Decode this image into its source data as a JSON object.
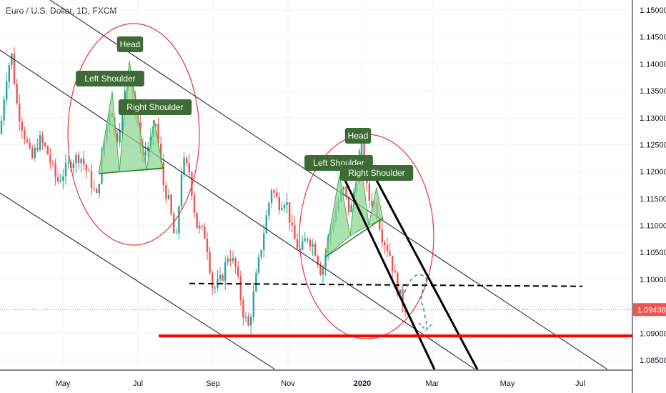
{
  "header": {
    "symbol_title": "Euro / U.S. Dollar, 1D, FXCM"
  },
  "colors": {
    "up": "#26a69a",
    "down": "#ef5350",
    "pattern_fill": "#8fd694",
    "label_bg": "#3d6b35",
    "support": "#ff0000",
    "last_price": "#ef5350",
    "ellipse": "#e53935",
    "channel": "#131722"
  },
  "chart_data": {
    "type": "candlestick",
    "y_axis": {
      "range": [
        1.0825,
        1.1525
      ],
      "ticks": [
        "1.15000",
        "1.14500",
        "1.14000",
        "1.13500",
        "1.13000",
        "1.12500",
        "1.12000",
        "1.11500",
        "1.11000",
        "1.10500",
        "1.10000",
        "1.09500",
        "1.09000",
        "1.08500"
      ],
      "last_price_label": "1.09438"
    },
    "x_axis": {
      "ticks": [
        "May",
        "Jul",
        "Sep",
        "Nov",
        "2020",
        "Mar",
        "May",
        "Jul"
      ]
    },
    "last_price": 1.09438,
    "support_level": 1.0895,
    "neckline_level": 1.0995,
    "annotations": [
      {
        "text": "Head",
        "pattern": 1
      },
      {
        "text": "Left Shoulder",
        "pattern": 1
      },
      {
        "text": "Right Shoulder",
        "pattern": 1
      },
      {
        "text": "Head",
        "pattern": 2
      },
      {
        "text": "Left Shoulder",
        "pattern": 2
      },
      {
        "text": "Right Shoulder",
        "pattern": 2
      }
    ]
  }
}
